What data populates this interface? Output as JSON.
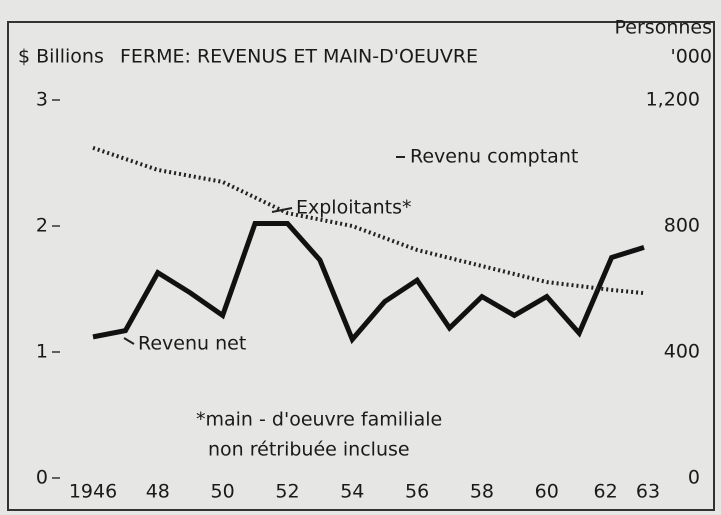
{
  "chart_data": {
    "type": "line",
    "title": "FERME: REVENUS ET MAIN-D'OEUVRE",
    "ylabel": "$ Billions",
    "y2label": [
      "Personnes",
      "'000"
    ],
    "xlim": [
      1946,
      1963
    ],
    "xticks": [
      1946,
      {
        "value": 1948,
        "label": "48"
      },
      {
        "value": 1950,
        "label": "50"
      },
      {
        "value": 1952,
        "label": "52"
      },
      {
        "value": 1954,
        "label": "54"
      },
      {
        "value": 1956,
        "label": "56"
      },
      {
        "value": 1958,
        "label": "58"
      },
      {
        "value": 1960,
        "label": "60"
      },
      {
        "value": 1962,
        "label": "62"
      },
      {
        "value": 1963,
        "label": "63"
      }
    ],
    "ylim": [
      0,
      3
    ],
    "yticks": [
      0,
      1,
      2,
      3
    ],
    "y2lim": [
      0,
      1200
    ],
    "y2ticks": [
      0,
      400,
      800,
      {
        "value": 1200,
        "label": "1,200"
      }
    ],
    "series": [
      {
        "name": "Revenu net",
        "color": "#111111",
        "style": "solid",
        "x": [
          1946,
          1947,
          1948,
          1949,
          1950,
          1951,
          1952,
          1953,
          1954,
          1955,
          1956,
          1957,
          1958,
          1959,
          1960,
          1961,
          1962,
          1963
        ],
        "values": [
          1.12,
          1.17,
          1.63,
          1.47,
          1.29,
          2.02,
          2.02,
          1.73,
          1.1,
          1.4,
          1.57,
          1.19,
          1.44,
          1.29,
          1.44,
          1.15,
          1.75,
          1.83
        ]
      },
      {
        "name": "Exploitants*",
        "color": "#222222",
        "style": "dotted",
        "axis": "y2",
        "x": [
          1946,
          1948,
          1950,
          1952,
          1954,
          1956,
          1958,
          1960,
          1962,
          1963
        ],
        "values": [
          1048,
          978,
          940,
          841,
          800,
          724,
          673,
          622,
          597,
          587
        ]
      }
    ],
    "annotations": [
      "Revenu comptant"
    ],
    "note": [
      "*main - d'oeuvre familiale",
      "non rétribuée incluse"
    ]
  }
}
